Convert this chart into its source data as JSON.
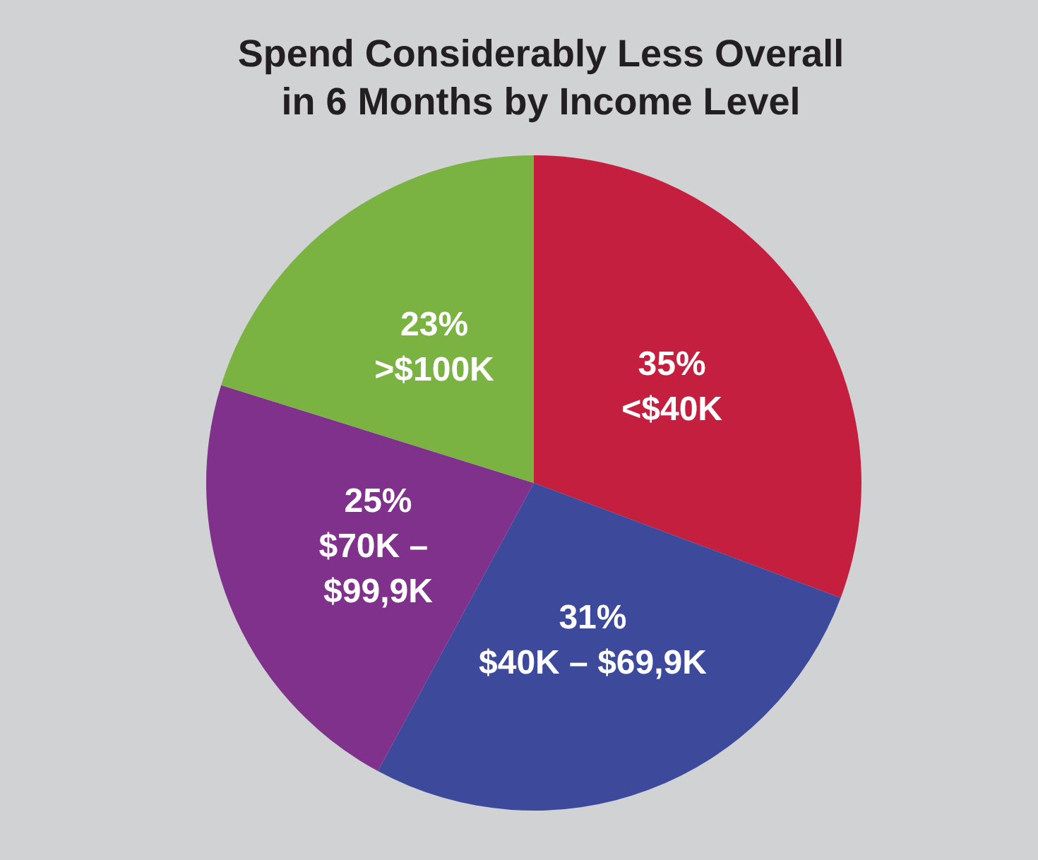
{
  "chart_data": {
    "type": "pie",
    "title": "Spend Considerably Less Overall\nin 6 Months by Income Level",
    "categories": [
      "<$40K",
      "$40K – $69,9K",
      "$70K – $99,9K",
      ">$100K"
    ],
    "values": [
      35,
      31,
      25,
      23
    ],
    "value_labels": [
      "35%",
      "31%",
      "25%",
      "23%"
    ],
    "colors": [
      "#c41f3e",
      "#3d4a9c",
      "#7f318b",
      "#7ab342"
    ],
    "legend": false
  }
}
